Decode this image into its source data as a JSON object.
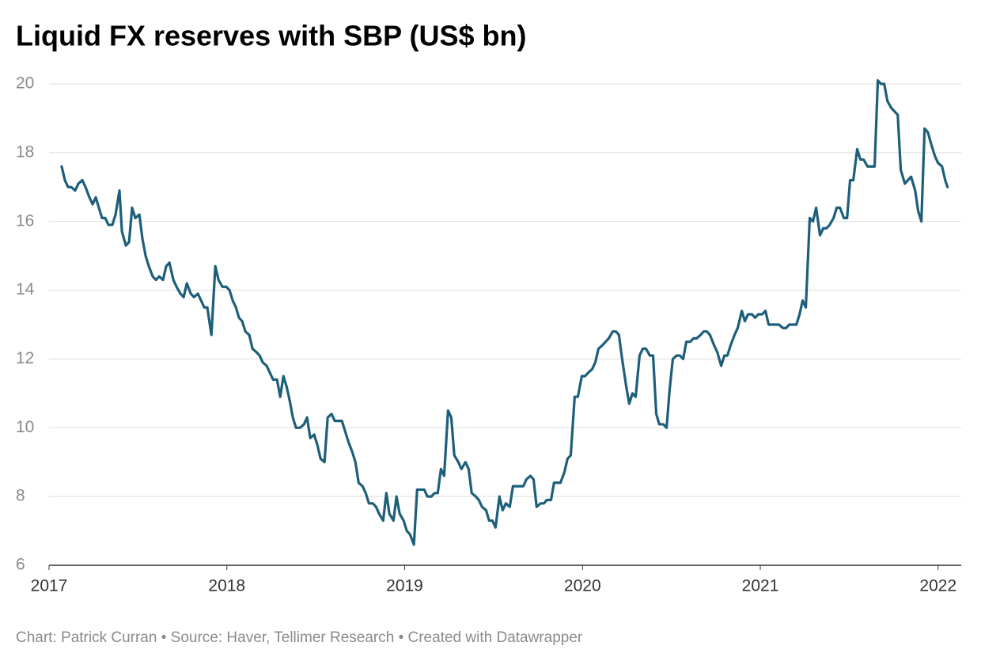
{
  "chart_data": {
    "type": "line",
    "title": "Liquid FX reserves with SBP (US$ bn)",
    "footer": "Chart: Patrick Curran • Source: Haver, Tellimer Research • Created with Datawrapper",
    "color": "#1d5f7a",
    "xlim": [
      2017,
      2022.13
    ],
    "xticks": [
      2017,
      2018,
      2019,
      2020,
      2021,
      2022
    ],
    "ylim": [
      6,
      20
    ],
    "yticks": [
      6,
      8,
      10,
      12,
      14,
      16,
      18,
      20
    ],
    "grid": true,
    "x": [
      2017.071,
      2017.089,
      2017.107,
      2017.125,
      2017.147,
      2017.165,
      2017.187,
      2017.205,
      2017.227,
      2017.245,
      2017.263,
      2017.28,
      2017.298,
      2017.316,
      2017.334,
      2017.356,
      2017.374,
      2017.396,
      2017.41,
      2017.432,
      2017.45,
      2017.467,
      2017.485,
      2017.508,
      2017.525,
      2017.543,
      2017.561,
      2017.583,
      2017.601,
      2017.619,
      2017.641,
      2017.659,
      2017.677,
      2017.699,
      2017.717,
      2017.739,
      2017.757,
      2017.775,
      2017.797,
      2017.815,
      2017.837,
      2017.855,
      2017.873,
      2017.89,
      2017.913,
      2017.935,
      2017.953,
      2017.975,
      2017.997,
      2018.015,
      2018.033,
      2018.051,
      2018.068,
      2018.086,
      2018.104,
      2018.126,
      2018.144,
      2018.166,
      2018.184,
      2018.202,
      2018.224,
      2018.242,
      2018.26,
      2018.282,
      2018.3,
      2018.318,
      2018.336,
      2018.353,
      2018.371,
      2018.389,
      2018.411,
      2018.434,
      2018.451,
      2018.469,
      2018.491,
      2018.509,
      2018.527,
      2018.549,
      2018.567,
      2018.589,
      2018.607,
      2018.625,
      2018.647,
      2018.665,
      2018.683,
      2018.705,
      2018.723,
      2018.741,
      2018.763,
      2018.781,
      2018.799,
      2018.821,
      2018.839,
      2018.856,
      2018.879,
      2018.897,
      2018.914,
      2018.937,
      2018.954,
      2018.972,
      2018.994,
      2019.012,
      2019.03,
      2019.052,
      2019.07,
      2019.088,
      2019.11,
      2019.128,
      2019.15,
      2019.168,
      2019.186,
      2019.204,
      2019.222,
      2019.244,
      2019.262,
      2019.279,
      2019.302,
      2019.319,
      2019.342,
      2019.36,
      2019.377,
      2019.4,
      2019.417,
      2019.435,
      2019.458,
      2019.475,
      2019.493,
      2019.511,
      2019.533,
      2019.551,
      2019.569,
      2019.591,
      2019.609,
      2019.627,
      2019.649,
      2019.667,
      2019.685,
      2019.707,
      2019.725,
      2019.742,
      2019.765,
      2019.783,
      2019.8,
      2019.823,
      2019.84,
      2019.858,
      2019.876,
      2019.898,
      2019.916,
      2019.934,
      2019.956,
      2019.974,
      2019.996,
      2020.014,
      2020.032,
      2020.054,
      2020.072,
      2020.09,
      2020.112,
      2020.13,
      2020.148,
      2020.17,
      2020.188,
      2020.205,
      2020.223,
      2020.246,
      2020.263,
      2020.281,
      2020.299,
      2020.321,
      2020.339,
      2020.357,
      2020.379,
      2020.397,
      2020.415,
      2020.432,
      2020.455,
      2020.473,
      2020.49,
      2020.508,
      2020.53,
      2020.548,
      2020.566,
      2020.584,
      2020.606,
      2020.624,
      2020.642,
      2020.664,
      2020.682,
      2020.7,
      2020.717,
      2020.74,
      2020.758,
      2020.78,
      2020.798,
      2020.815,
      2020.833,
      2020.855,
      2020.873,
      2020.896,
      2020.913,
      2020.931,
      2020.953,
      2020.971,
      2020.989,
      2021.011,
      2021.029,
      2021.047,
      2021.069,
      2021.087,
      2021.105,
      2021.127,
      2021.145,
      2021.163,
      2021.18,
      2021.203,
      2021.221,
      2021.238,
      2021.256,
      2021.278,
      2021.296,
      2021.314,
      2021.336,
      2021.354,
      2021.372,
      2021.39,
      2021.412,
      2021.43,
      2021.448,
      2021.47,
      2021.488,
      2021.505,
      2021.523,
      2021.545,
      2021.563,
      2021.581,
      2021.603,
      2021.621,
      2021.643,
      2021.661,
      2021.679,
      2021.697,
      2021.715,
      2021.737,
      2021.755,
      2021.773,
      2021.79,
      2021.813,
      2021.83,
      2021.848,
      2021.871,
      2021.888,
      2021.906,
      2021.924,
      2021.942,
      2021.964,
      2021.982,
      2022.0,
      2022.022,
      2022.04,
      2022.053
    ],
    "values": [
      17.6,
      17.2,
      17.0,
      17.0,
      16.9,
      17.1,
      17.2,
      17.0,
      16.7,
      16.5,
      16.7,
      16.4,
      16.1,
      16.1,
      15.9,
      15.9,
      16.2,
      16.9,
      15.7,
      15.3,
      15.4,
      16.4,
      16.1,
      16.2,
      15.5,
      15.0,
      14.7,
      14.4,
      14.3,
      14.4,
      14.3,
      14.7,
      14.8,
      14.3,
      14.1,
      13.9,
      13.8,
      14.2,
      13.9,
      13.8,
      13.9,
      13.7,
      13.5,
      13.5,
      12.7,
      14.7,
      14.3,
      14.1,
      14.1,
      14.0,
      13.7,
      13.5,
      13.2,
      13.1,
      12.8,
      12.7,
      12.3,
      12.2,
      12.1,
      11.9,
      11.8,
      11.6,
      11.4,
      11.4,
      10.9,
      11.5,
      11.2,
      10.8,
      10.3,
      10.0,
      10.0,
      10.1,
      10.3,
      9.7,
      9.8,
      9.5,
      9.1,
      9.0,
      10.3,
      10.4,
      10.2,
      10.2,
      10.2,
      9.9,
      9.6,
      9.3,
      9.0,
      8.4,
      8.3,
      8.1,
      7.8,
      7.8,
      7.7,
      7.5,
      7.3,
      8.1,
      7.5,
      7.3,
      8.0,
      7.5,
      7.3,
      7.0,
      6.9,
      6.6,
      8.2,
      8.2,
      8.2,
      8.0,
      8.0,
      8.1,
      8.1,
      8.8,
      8.6,
      10.5,
      10.3,
      9.2,
      9.0,
      8.8,
      9.0,
      8.8,
      8.1,
      8.0,
      7.9,
      7.7,
      7.6,
      7.3,
      7.3,
      7.1,
      8.0,
      7.6,
      7.8,
      7.7,
      8.3,
      8.3,
      8.3,
      8.3,
      8.5,
      8.6,
      8.5,
      7.7,
      7.8,
      7.8,
      7.9,
      7.9,
      8.4,
      8.4,
      8.4,
      8.7,
      9.1,
      9.2,
      10.9,
      10.9,
      11.5,
      11.5,
      11.6,
      11.7,
      11.9,
      12.3,
      12.4,
      12.5,
      12.6,
      12.8,
      12.8,
      12.7,
      12.0,
      11.2,
      10.7,
      11.0,
      10.9,
      12.1,
      12.3,
      12.3,
      12.1,
      12.1,
      10.4,
      10.1,
      10.1,
      10.0,
      11.1,
      12.0,
      12.1,
      12.1,
      12.0,
      12.5,
      12.5,
      12.6,
      12.6,
      12.7,
      12.8,
      12.8,
      12.7,
      12.4,
      12.2,
      11.8,
      12.1,
      12.1,
      12.4,
      12.7,
      12.9,
      13.4,
      13.1,
      13.3,
      13.3,
      13.2,
      13.3,
      13.3,
      13.4,
      13.0,
      13.0,
      13.0,
      13.0,
      12.9,
      12.9,
      13.0,
      13.0,
      13.0,
      13.3,
      13.7,
      13.5,
      16.1,
      16.0,
      16.4,
      15.6,
      15.8,
      15.8,
      15.9,
      16.1,
      16.4,
      16.4,
      16.1,
      16.1,
      17.2,
      17.2,
      18.1,
      17.8,
      17.8,
      17.6,
      17.6,
      17.6,
      20.1,
      20.0,
      20.0,
      19.5,
      19.3,
      19.2,
      19.1,
      17.5,
      17.1,
      17.2,
      17.3,
      16.9,
      16.3,
      16.0,
      18.7,
      18.6,
      18.2,
      17.9,
      17.7,
      17.6,
      17.2,
      17.0
    ]
  }
}
